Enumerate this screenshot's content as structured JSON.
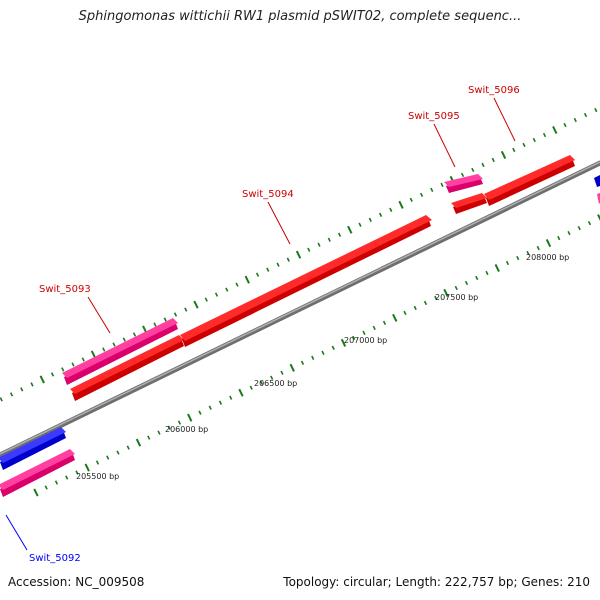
{
  "title": "Sphingomonas wittichii RW1 plasmid pSWIT02, complete sequenc...",
  "footer": {
    "accession": "Accession: NC_009508",
    "summary": "Topology: circular; Length: 222,757 bp; Genes: 210"
  },
  "bp_markers": [
    {
      "label": "205500 bp"
    },
    {
      "label": "206000 bp"
    },
    {
      "label": "206500 bp"
    },
    {
      "label": "207000 bp"
    },
    {
      "label": "207500 bp"
    },
    {
      "label": "208000 bp"
    }
  ],
  "gene_labels": [
    {
      "name": "Swit_5092",
      "color": "#0000ff"
    },
    {
      "name": "Swit_5093",
      "color": "#cc0000"
    },
    {
      "name": "Swit_5094",
      "color": "#cc0000"
    },
    {
      "name": "Swit_5095",
      "color": "#cc0000"
    },
    {
      "name": "Swit_5096",
      "color": "#cc0000"
    }
  ],
  "colors": {
    "cds_forward": "#ff0000",
    "cds_reverse": "#0000ff",
    "gene_bar": "#ff3399",
    "backbone": "#888888",
    "ticks": "#1a7a1a"
  }
}
